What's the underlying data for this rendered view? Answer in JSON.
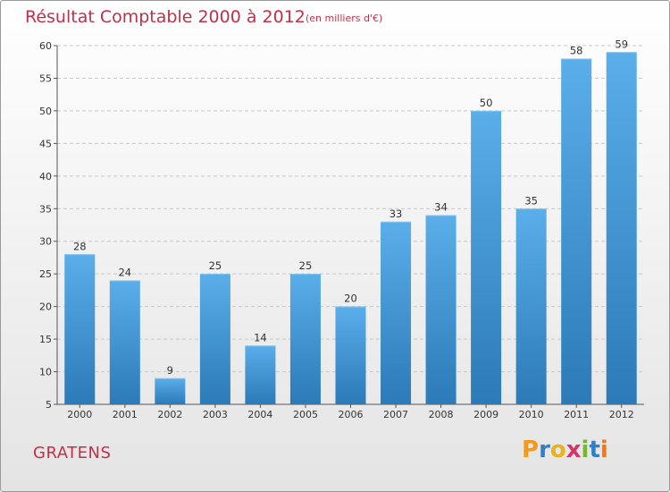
{
  "title": "Résultat Comptable 2000 à 2012",
  "subtitle": "(en milliers d'€)",
  "commune": "GRATENS",
  "logo": {
    "letters": [
      "P",
      "r",
      "o",
      "x",
      "i",
      "t",
      "i"
    ],
    "colors": [
      "#f39a1b",
      "#2f7fc9",
      "#e8b21c",
      "#d8336a",
      "#74b92a",
      "#2f7fc9",
      "#e8782a"
    ]
  },
  "colors": {
    "title": "#c0304a",
    "bar_top": "#5aaeea",
    "bar_bottom": "#2c7ab8",
    "grid": "#c8c8c8"
  },
  "chart_data": {
    "type": "bar",
    "title": "Résultat Comptable 2000 à 2012",
    "subtitle": "(en milliers d'€)",
    "xlabel": "",
    "ylabel": "",
    "categories": [
      "2000",
      "2001",
      "2002",
      "2003",
      "2004",
      "2005",
      "2006",
      "2007",
      "2008",
      "2009",
      "2010",
      "2011",
      "2012"
    ],
    "values": [
      28,
      24,
      9,
      25,
      14,
      25,
      20,
      33,
      34,
      50,
      35,
      58,
      59
    ],
    "ylim": [
      5,
      60
    ],
    "yticks": [
      5,
      10,
      15,
      20,
      25,
      30,
      35,
      40,
      45,
      50,
      55,
      60
    ],
    "grid": true,
    "data_labels": true
  }
}
